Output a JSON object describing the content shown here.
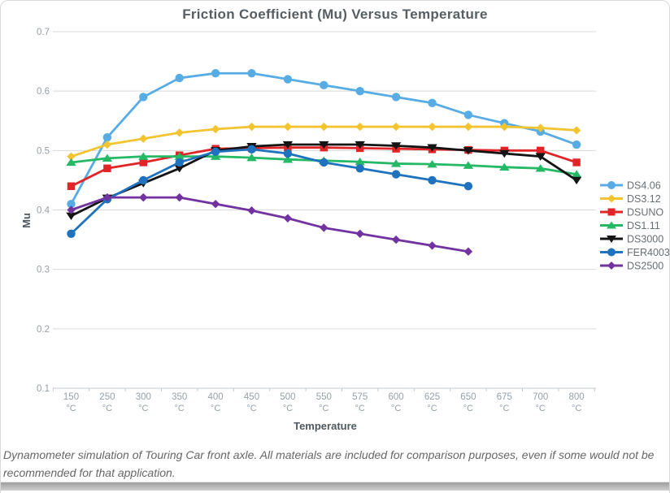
{
  "caption": "Dynamometer simulation of Touring Car front axle. All materials are included for comparison purposes, even if some would not be recommended for that application.",
  "colors": {
    "gridline": "#d9d9d9",
    "axis_line": "#c6cbd0",
    "tick_text": "#95a0a9",
    "legend_text": "#666e75",
    "title_text": "#565e63"
  },
  "chart_data": {
    "type": "line",
    "title": "Friction Coefficient (Mu) Versus Temperature",
    "xlabel": "Temperature",
    "ylabel": "Mu",
    "ylim": [
      0.1,
      0.7
    ],
    "ytick_step": 0.1,
    "grid": true,
    "legend_position": "right",
    "category_unit": "°C",
    "categories": [
      "150",
      "250",
      "300",
      "350",
      "400",
      "450",
      "500",
      "550",
      "575",
      "600",
      "625",
      "650",
      "675",
      "700",
      "800"
    ],
    "series": [
      {
        "name": "DS4.06",
        "color": "#58ACE4",
        "marker": "circle",
        "values": [
          0.41,
          0.522,
          0.59,
          0.622,
          0.63,
          0.63,
          0.62,
          0.61,
          0.6,
          0.59,
          0.58,
          0.56,
          0.546,
          0.532,
          0.51
        ]
      },
      {
        "name": "DS3.12",
        "color": "#F2C430",
        "marker": "diamond",
        "values": [
          0.49,
          0.51,
          0.52,
          0.53,
          0.536,
          0.54,
          0.54,
          0.54,
          0.54,
          0.54,
          0.54,
          0.54,
          0.54,
          0.538,
          0.534
        ]
      },
      {
        "name": "DSUNO",
        "color": "#E02427",
        "marker": "square",
        "values": [
          0.44,
          0.47,
          0.48,
          0.492,
          0.503,
          0.504,
          0.505,
          0.505,
          0.504,
          0.503,
          0.502,
          0.501,
          0.5,
          0.5,
          0.48
        ]
      },
      {
        "name": "DS1.11",
        "color": "#25B965",
        "marker": "triangle-up",
        "values": [
          0.48,
          0.487,
          0.49,
          0.49,
          0.49,
          0.488,
          0.485,
          0.483,
          0.481,
          0.478,
          0.477,
          0.475,
          0.472,
          0.47,
          0.46
        ]
      },
      {
        "name": "DS3000",
        "color": "#141414",
        "marker": "triangle-down",
        "values": [
          0.39,
          0.42,
          0.445,
          0.47,
          0.5,
          0.507,
          0.51,
          0.51,
          0.51,
          0.508,
          0.505,
          0.5,
          0.495,
          0.49,
          0.45
        ]
      },
      {
        "name": "FER4003",
        "color": "#1F72BE",
        "marker": "circle",
        "values": [
          0.36,
          0.418,
          0.45,
          0.48,
          0.498,
          0.502,
          0.495,
          0.48,
          0.47,
          0.46,
          0.45,
          0.44
        ]
      },
      {
        "name": "DS2500",
        "color": "#7232A0",
        "marker": "diamond",
        "values": [
          0.4,
          0.421,
          0.421,
          0.421,
          0.41,
          0.399,
          0.386,
          0.37,
          0.36,
          0.35,
          0.34,
          0.33
        ]
      }
    ]
  }
}
